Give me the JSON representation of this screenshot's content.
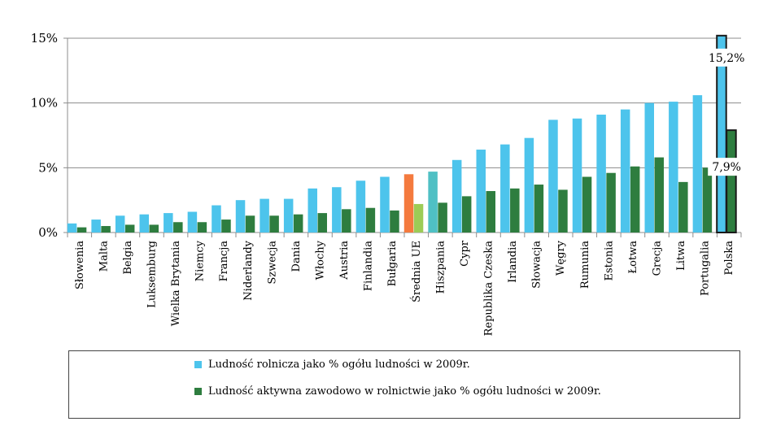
{
  "colors": {
    "rural": "#4dc4ec",
    "active": "#2e7d3f",
    "avg_rural": "#f47a3e",
    "avg_active": "#9ccc56",
    "spain_rural": "#4fc0c4",
    "outline": "#1a1a1a",
    "grid": "#8c8c8c"
  },
  "chart_data": {
    "type": "bar",
    "categories": [
      "Słowenia",
      "Malta",
      "Belgia",
      "Luksemburg",
      "Wielka Brytania",
      "Niemcy",
      "Francja",
      "Niderlandy",
      "Szwecja",
      "Dania",
      "Włochy",
      "Austria",
      "Finlandia",
      "Bułgaria",
      "Średnia UE",
      "Hiszpania",
      "Cypr",
      "Republika Czeska",
      "Irlandia",
      "Słowacja",
      "Węgry",
      "Rumunia",
      "Estonia",
      "Łotwa",
      "Grecja",
      "Litwa",
      "Portugalia",
      "Polska"
    ],
    "series": [
      {
        "name": "Ludność rolnicza jako % ogółu ludności w 2009r.",
        "values": [
          0.7,
          1.0,
          1.3,
          1.4,
          1.5,
          1.6,
          2.1,
          2.5,
          2.6,
          2.6,
          3.4,
          3.5,
          4.0,
          4.3,
          4.5,
          4.7,
          5.6,
          6.4,
          6.8,
          7.3,
          8.7,
          8.8,
          9.1,
          9.5,
          10.0,
          10.1,
          10.6,
          15.2
        ]
      },
      {
        "name": "Ludność aktywna zawodowo w rolnictwie jako % ogółu ludności w 2009r.",
        "values": [
          0.4,
          0.5,
          0.6,
          0.6,
          0.8,
          0.8,
          1.0,
          1.3,
          1.3,
          1.4,
          1.5,
          1.8,
          1.9,
          1.7,
          2.2,
          2.3,
          2.8,
          3.2,
          3.4,
          3.7,
          3.3,
          4.3,
          4.6,
          5.1,
          5.8,
          3.9,
          5.0,
          7.9
        ]
      }
    ],
    "ylim": [
      0,
      15
    ],
    "y_ticks": [
      {
        "value": 0,
        "label": "0%"
      },
      {
        "value": 5,
        "label": "5%"
      },
      {
        "value": 10,
        "label": "10%"
      },
      {
        "value": 15,
        "label": "15%"
      }
    ],
    "grid": true,
    "legend_position": "bottom",
    "data_labels": [
      {
        "category": "Polska",
        "series": 0,
        "text": "15,2%"
      },
      {
        "category": "Polska",
        "series": 1,
        "text": "7,9%"
      }
    ]
  }
}
